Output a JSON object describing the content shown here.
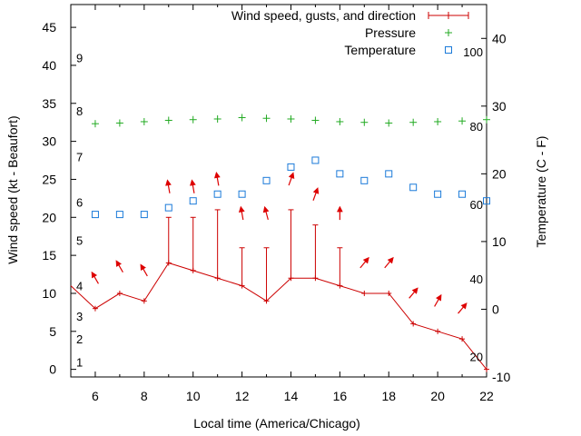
{
  "chart_data": {
    "type": "line",
    "xlabel": "Local time (America/Chicago)",
    "ylabel": "Wind speed (kt - Beaufort)",
    "y2label": "Temperature (C - F)",
    "xlim": [
      5,
      22
    ],
    "ylim": [
      -1,
      48
    ],
    "y2lim": [
      -10,
      45
    ],
    "x_ticks": [
      6,
      8,
      10,
      12,
      14,
      16,
      18,
      20,
      22
    ],
    "y_ticks": [
      0,
      5,
      10,
      15,
      20,
      25,
      30,
      35,
      40,
      45
    ],
    "y2_ticks": [
      -10,
      0,
      10,
      20,
      30,
      40
    ],
    "beaufort_labels": [
      {
        "label": "1",
        "y": 1
      },
      {
        "label": "2",
        "y": 4
      },
      {
        "label": "3",
        "y": 7
      },
      {
        "label": "4",
        "y": 11
      },
      {
        "label": "5",
        "y": 17
      },
      {
        "label": "6",
        "y": 22
      },
      {
        "label": "7",
        "y": 28
      },
      {
        "label": "8",
        "y": 34
      },
      {
        "label": "9",
        "y": 41
      }
    ],
    "fahrenheit_labels": [
      {
        "label": "20",
        "y2": -7
      },
      {
        "label": "40",
        "y2": 4.5
      },
      {
        "label": "60",
        "y2": 15.5
      },
      {
        "label": "80",
        "y2": 27
      },
      {
        "label": "100",
        "y2": 38
      }
    ],
    "legend": [
      {
        "name": "Wind speed, gusts, and direction",
        "color": "#cc0000"
      },
      {
        "name": "Pressure",
        "color": "#22aa22"
      },
      {
        "name": "Temperature",
        "color": "#1a7ad9"
      }
    ],
    "legend_position": "top-right",
    "series": [
      {
        "name": "Wind speed, gusts, and direction",
        "axis": "left",
        "color": "#cc0000",
        "x": [
          5,
          6,
          7,
          8,
          9,
          10,
          11,
          12,
          13,
          14,
          15,
          16,
          17,
          18,
          19,
          20,
          21,
          22
        ],
        "values": [
          11,
          8,
          10,
          9,
          14,
          13,
          12,
          11,
          9,
          12,
          12,
          11,
          10,
          10,
          6,
          5,
          4,
          0
        ],
        "gusts": [
          null,
          null,
          null,
          null,
          20,
          20,
          21,
          16,
          16,
          21,
          19,
          16,
          null,
          null,
          null,
          null,
          null,
          null
        ]
      },
      {
        "name": "Pressure",
        "axis": "right",
        "color": "#22aa22",
        "x": [
          6,
          7,
          8,
          9,
          10,
          11,
          12,
          13,
          14,
          15,
          16,
          17,
          18,
          19,
          20,
          21,
          22
        ],
        "values": [
          27.4,
          27.5,
          27.7,
          27.9,
          28.0,
          28.1,
          28.3,
          28.2,
          28.1,
          27.9,
          27.7,
          27.6,
          27.5,
          27.6,
          27.7,
          27.8,
          28.0
        ]
      },
      {
        "name": "Temperature",
        "axis": "right",
        "color": "#1a7ad9",
        "x": [
          6,
          7,
          8,
          9,
          10,
          11,
          12,
          13,
          14,
          15,
          16,
          17,
          18,
          19,
          20,
          21,
          22
        ],
        "values": [
          14,
          14,
          14,
          15,
          16,
          17,
          17,
          19,
          21,
          22,
          20,
          19,
          20,
          18,
          17,
          17,
          16
        ]
      }
    ],
    "wind_direction_arrows": {
      "color": "#dd0000",
      "x": [
        6,
        7,
        8,
        9,
        10,
        11,
        12,
        13,
        14,
        15,
        16,
        17,
        18,
        19,
        20,
        21
      ],
      "y": [
        12,
        13.5,
        13,
        24,
        24,
        25,
        20.5,
        20.5,
        25,
        23,
        20.5,
        14,
        14,
        10,
        9,
        8
      ],
      "direction_deg": [
        150,
        150,
        150,
        170,
        170,
        170,
        170,
        165,
        200,
        200,
        180,
        220,
        220,
        220,
        210,
        220
      ]
    }
  }
}
